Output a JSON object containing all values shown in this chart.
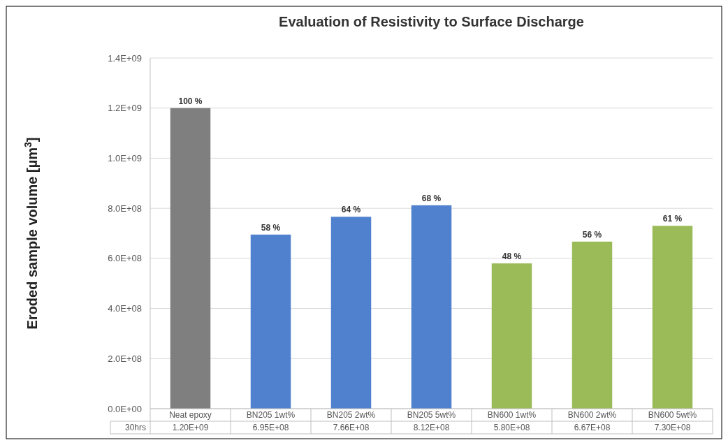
{
  "chart_data": {
    "type": "bar",
    "title": "Evaluation of Resistivity to Surface Discharge",
    "ylabel": "Eroded sample volume [µm$^{3}$]",
    "categories": [
      "Neat epoxy",
      "BN205 1wt%",
      "BN205 2wt%",
      "BN205 5wt%",
      "BN600 1wt%",
      "BN600 2wt%",
      "BN600 5wt%"
    ],
    "values": [
      1200000000,
      695000000,
      766000000,
      812000000,
      580000000,
      667000000,
      730000000
    ],
    "colors": [
      "#7f7f7f",
      "#4f81cf",
      "#4f81cf",
      "#4f81cf",
      "#9bbb59",
      "#9bbb59",
      "#9bbb59"
    ],
    "value_labels": [
      "1.20E+09",
      "6.95E+08",
      "7.66E+08",
      "8.12E+08",
      "5.80E+08",
      "6.67E+08",
      "7.30E+08"
    ],
    "annotations": [
      "30hrs",
      {
        "text": "100 %",
        "x": "Neat epoxy",
        "y": 1200000000
      },
      {
        "text": "58 %",
        "x": "BN205 1wt%",
        "y": 695000000
      },
      {
        "text": "64 %",
        "x": "BN205 2wt%",
        "y": 766000000
      },
      {
        "text": "68 %",
        "x": "BN205 5wt%",
        "y": 812000000
      },
      {
        "text": "48 %",
        "x": "BN600 1wt%",
        "y": 580000000
      },
      {
        "text": "56 %",
        "x": "BN600 2wt%",
        "y": 667000000
      },
      {
        "text": "61 %",
        "x": "BN600 5wt%",
        "y": 730000000
      }
    ],
    "ylim": [
      0,
      1400000000
    ],
    "yticks": [
      {
        "value": 0,
        "label": "0.0E+00"
      },
      {
        "value": 200000000,
        "label": "2.0E+08"
      },
      {
        "value": 400000000,
        "label": "4.0E+08"
      },
      {
        "value": 600000000,
        "label": "6.0E+08"
      },
      {
        "value": 800000000,
        "label": "8.0E+08"
      },
      {
        "value": 1000000000,
        "label": "1.0E+09"
      },
      {
        "value": 1200000000,
        "label": "1.2E+09"
      },
      {
        "value": 1400000000,
        "label": "1.4E+09"
      }
    ],
    "grid": true
  }
}
